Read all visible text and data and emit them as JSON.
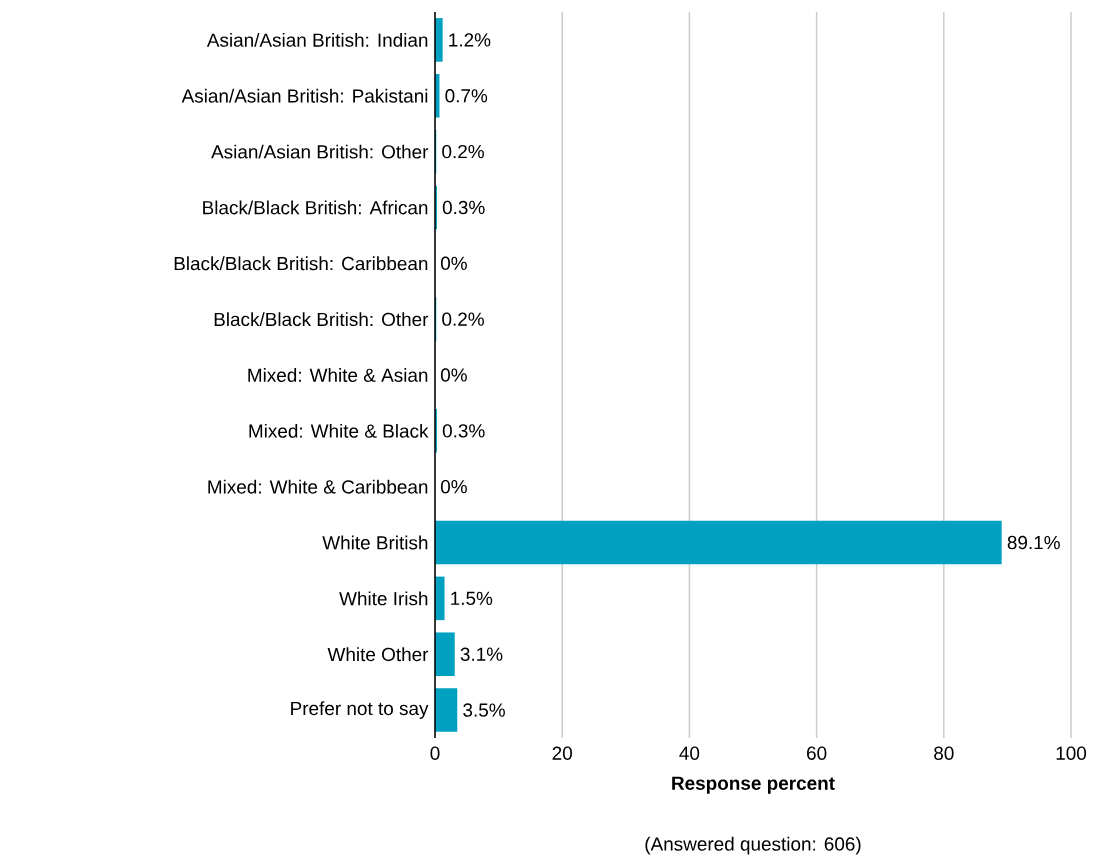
{
  "chart_data": {
    "type": "bar",
    "orientation": "horizontal",
    "categories": [
      "Asian/Asian British: Indian",
      "Asian/Asian British: Pakistani",
      "Asian/Asian British: Other",
      "Black/Black British: African",
      "Black/Black British: Caribbean",
      "Black/Black British: Other",
      "Mixed: White & Asian",
      "Mixed: White & Black",
      "Mixed: White & Caribbean",
      "White British",
      "White Irish",
      "White Other",
      "Prefer not to say"
    ],
    "values": [
      1.2,
      0.7,
      0.2,
      0.3,
      0,
      0.2,
      0,
      0.3,
      0,
      89.1,
      1.5,
      3.1,
      3.5
    ],
    "value_labels": [
      "1.2%",
      "0.7%",
      "0.2%",
      "0.3%",
      "0%",
      "0.2%",
      "0%",
      "0.3%",
      "0%",
      "89.1%",
      "1.5%",
      "3.1%",
      "3.5%"
    ],
    "color": "#00a0c0",
    "xlim": [
      0,
      100
    ],
    "xticks": [
      0,
      20,
      40,
      60,
      80,
      100
    ],
    "grid": "x",
    "xlabel": "Response percent",
    "annotations": [
      "(Answered question: 606)"
    ]
  }
}
